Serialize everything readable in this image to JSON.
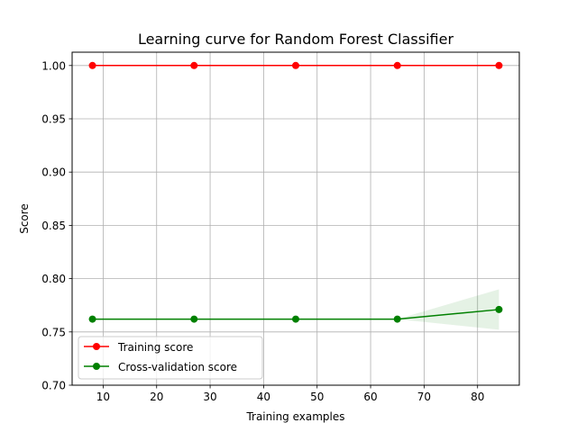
{
  "chart_data": {
    "type": "line",
    "title": "Learning curve for Random Forest Classifier",
    "xlabel": "Training examples",
    "ylabel": "Score",
    "xlim": [
      4.2,
      87.8
    ],
    "ylim": [
      0.7,
      1.0125
    ],
    "xticks": [
      10,
      20,
      30,
      40,
      50,
      60,
      70,
      80
    ],
    "yticks": [
      0.7,
      0.75,
      0.8,
      0.85,
      0.9,
      0.95,
      1.0
    ],
    "xtick_labels": [
      "10",
      "20",
      "30",
      "40",
      "50",
      "60",
      "70",
      "80"
    ],
    "ytick_labels": [
      "0.70",
      "0.75",
      "0.80",
      "0.85",
      "0.90",
      "0.95",
      "1.00"
    ],
    "grid": true,
    "legend_position": "lower-left",
    "x": [
      8,
      27,
      46,
      65,
      84
    ],
    "series": [
      {
        "name": "Training score",
        "color": "#ff0000",
        "marker": "circle",
        "values": [
          1.0,
          1.0,
          1.0,
          1.0,
          1.0
        ],
        "band_lower": [
          1.0,
          1.0,
          1.0,
          1.0,
          1.0
        ],
        "band_upper": [
          1.0,
          1.0,
          1.0,
          1.0,
          1.0
        ]
      },
      {
        "name": "Cross-validation score",
        "color": "#008000",
        "marker": "circle",
        "values": [
          0.762,
          0.762,
          0.762,
          0.762,
          0.771
        ],
        "band_lower": [
          0.762,
          0.762,
          0.762,
          0.762,
          0.752
        ],
        "band_upper": [
          0.762,
          0.762,
          0.762,
          0.762,
          0.79
        ]
      }
    ]
  }
}
